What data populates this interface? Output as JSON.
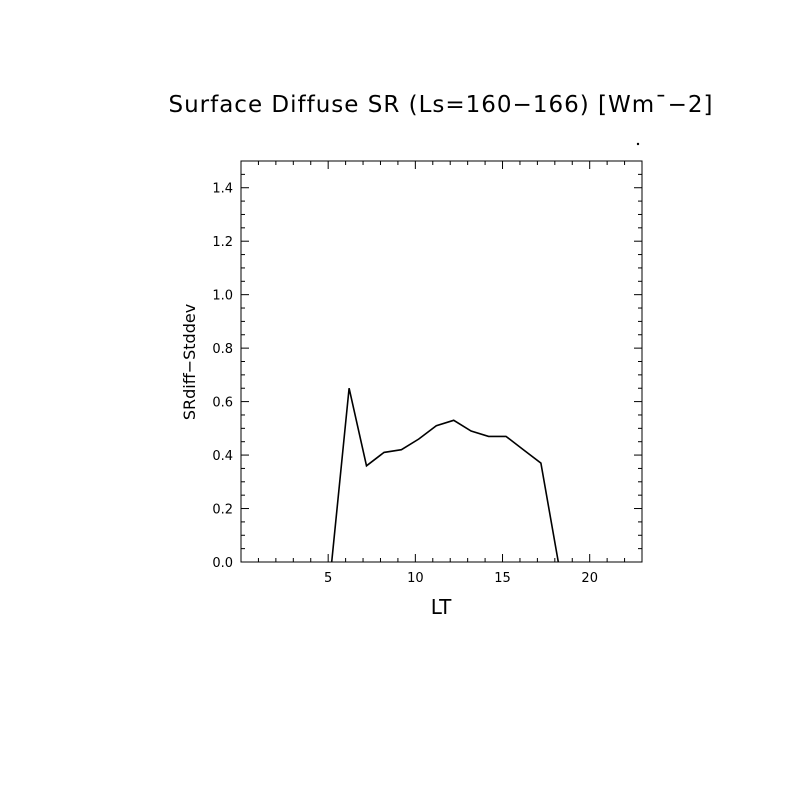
{
  "chart_data": {
    "type": "line",
    "title": "Surface Diffuse SR (Ls=160−166) [Wm¯−2]",
    "xlabel": "LT",
    "ylabel": "SRdiff−Stddev",
    "xlim": [
      0,
      23
    ],
    "ylim": [
      0,
      1.5
    ],
    "xticks": [
      5,
      10,
      15,
      20
    ],
    "xtick_labels": [
      "5",
      "10",
      "15",
      "20"
    ],
    "yticks": [
      0.0,
      0.2,
      0.4,
      0.6,
      0.8,
      1.0,
      1.2,
      1.4
    ],
    "ytick_labels": [
      "0.0",
      "0.2",
      "0.4",
      "0.6",
      "0.8",
      "1.0",
      "1.2",
      "1.4"
    ],
    "grid": false,
    "series": [
      {
        "x": [
          5.2,
          6.2,
          7.2,
          8.2,
          9.2,
          10.2,
          11.2,
          12.2,
          13.2,
          14.2,
          15.2,
          16.2,
          17.2,
          18.2
        ],
        "y": [
          0.0,
          0.65,
          0.36,
          0.41,
          0.42,
          0.46,
          0.51,
          0.53,
          0.49,
          0.47,
          0.47,
          0.42,
          0.37,
          0.0
        ]
      }
    ]
  },
  "colors": {
    "line": "#000000",
    "axes": "#000000",
    "background": "#ffffff"
  }
}
